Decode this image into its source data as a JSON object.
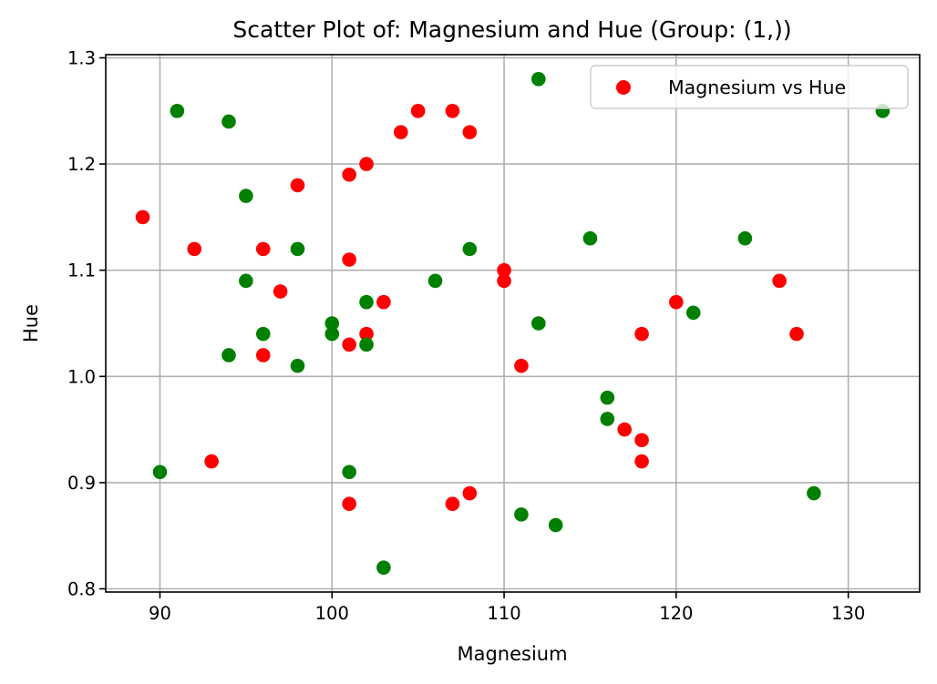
{
  "chart_data": {
    "type": "scatter",
    "title": "Scatter Plot of: Magnesium and Hue (Group: (1,))",
    "xlabel": "Magnesium",
    "ylabel": "Hue",
    "xlim": [
      86.85,
      134.15
    ],
    "ylim": [
      0.797,
      1.303
    ],
    "xticks": [
      90,
      100,
      110,
      120,
      130
    ],
    "yticks": [
      0.8,
      0.9,
      1.0,
      1.1,
      1.2,
      1.3
    ],
    "xtick_labels": [
      "90",
      "100",
      "110",
      "120",
      "130"
    ],
    "ytick_labels": [
      "0.8",
      "0.9",
      "1.0",
      "1.1",
      "1.2",
      "1.3"
    ],
    "grid": true,
    "legend": {
      "position": "top-right",
      "entries": [
        "Magnesium vs Hue"
      ]
    },
    "series": [
      {
        "name": "Magnesium vs Hue",
        "color": "#ff0000",
        "points": [
          [
            89,
            1.15
          ],
          [
            92,
            1.12
          ],
          [
            93,
            0.92
          ],
          [
            96,
            1.12
          ],
          [
            96,
            1.02
          ],
          [
            97,
            1.08
          ],
          [
            98,
            1.18
          ],
          [
            101,
            1.19
          ],
          [
            101,
            1.11
          ],
          [
            101,
            1.03
          ],
          [
            101,
            0.88
          ],
          [
            102,
            1.2
          ],
          [
            102,
            1.04
          ],
          [
            103,
            1.07
          ],
          [
            104,
            1.23
          ],
          [
            105,
            1.25
          ],
          [
            107,
            1.25
          ],
          [
            107,
            0.88
          ],
          [
            108,
            1.23
          ],
          [
            108,
            0.89
          ],
          [
            110,
            1.1
          ],
          [
            110,
            1.09
          ],
          [
            111,
            1.01
          ],
          [
            117,
            0.95
          ],
          [
            118,
            1.04
          ],
          [
            118,
            0.94
          ],
          [
            118,
            0.92
          ],
          [
            120,
            1.07
          ],
          [
            126,
            1.09
          ],
          [
            127,
            1.04
          ]
        ]
      },
      {
        "color": "#008000",
        "points": [
          [
            90,
            0.91
          ],
          [
            91,
            1.25
          ],
          [
            94,
            1.24
          ],
          [
            94,
            1.02
          ],
          [
            95,
            1.17
          ],
          [
            95,
            1.09
          ],
          [
            96,
            1.04
          ],
          [
            98,
            1.12
          ],
          [
            98,
            1.01
          ],
          [
            100,
            1.05
          ],
          [
            100,
            1.04
          ],
          [
            101,
            0.91
          ],
          [
            102,
            1.07
          ],
          [
            102,
            1.03
          ],
          [
            103,
            0.82
          ],
          [
            106,
            1.09
          ],
          [
            108,
            1.12
          ],
          [
            111,
            0.87
          ],
          [
            112,
            1.28
          ],
          [
            112,
            1.05
          ],
          [
            113,
            0.86
          ],
          [
            115,
            1.13
          ],
          [
            116,
            0.98
          ],
          [
            116,
            0.96
          ],
          [
            121,
            1.06
          ],
          [
            124,
            1.13
          ],
          [
            128,
            0.89
          ],
          [
            132,
            1.25
          ]
        ]
      }
    ]
  }
}
